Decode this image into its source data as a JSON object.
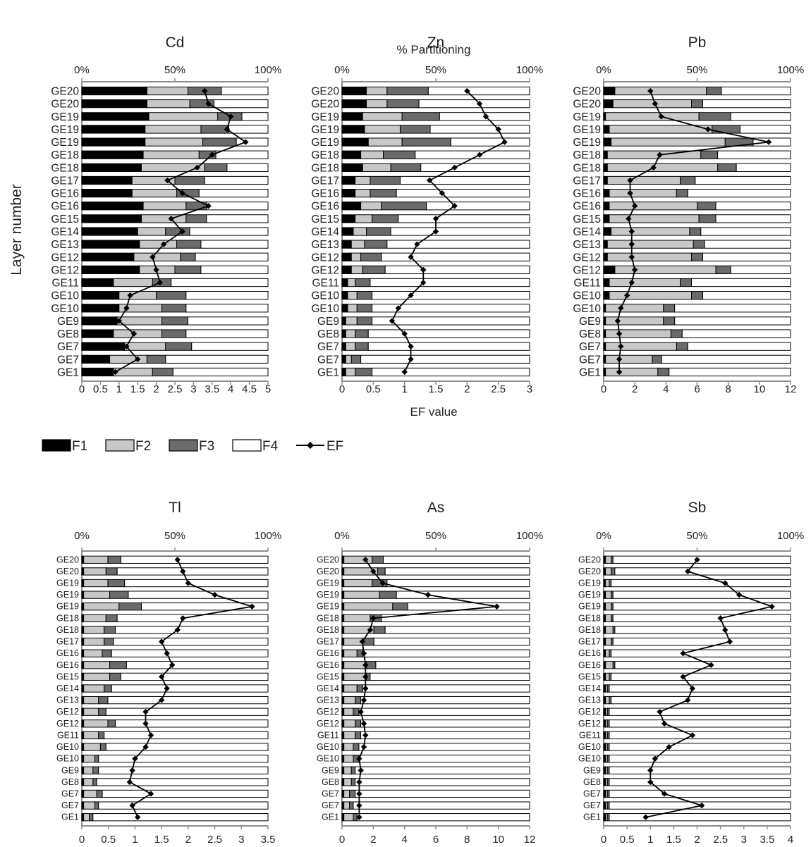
{
  "colors": {
    "F1": "#000000",
    "F2": "#c8c8c8",
    "F3": "#6b6b6b",
    "F4": "#ffffff",
    "EF": "#000000",
    "axis": "#8c8c8c"
  },
  "shared_labels": {
    "top_axis_label": "% Partitioning",
    "y_axis_label": "Layer number",
    "x_axis_label": "EF value"
  },
  "legend": {
    "items": [
      {
        "key": "F1",
        "label": "F1",
        "kind": "bar"
      },
      {
        "key": "F2",
        "label": "F2",
        "kind": "bar"
      },
      {
        "key": "F3",
        "label": "F3",
        "kind": "bar"
      },
      {
        "key": "F4",
        "label": "F4",
        "kind": "bar"
      },
      {
        "key": "EF",
        "label": "EF",
        "kind": "line"
      }
    ]
  },
  "chart_data": [
    {
      "type": "bar",
      "stacked": "horizontal-100-percent",
      "title": "Cd",
      "categories": [
        "GE20",
        "GE20",
        "GE19",
        "GE19",
        "GE19",
        "GE18",
        "GE18",
        "GE17",
        "GE16",
        "GE16",
        "GE15",
        "GE14",
        "GE13",
        "GE12",
        "GE12",
        "GE11",
        "GE10",
        "GE10",
        "GE9",
        "GE8",
        "GE7",
        "GE7",
        "GE1"
      ],
      "percent_ticks": [
        "0%",
        "50%",
        "100%"
      ],
      "series": [
        {
          "name": "F1",
          "values": [
            35,
            35,
            36,
            34,
            34,
            33,
            32,
            27,
            27,
            33,
            32,
            30,
            31,
            28,
            31,
            17,
            20,
            20,
            19,
            17,
            23,
            15,
            17
          ]
        },
        {
          "name": "F2",
          "values": [
            22,
            23,
            37,
            30,
            31,
            30,
            34,
            23,
            24,
            23,
            24,
            15,
            20,
            25,
            19,
            21,
            20,
            23,
            24,
            26,
            22,
            20,
            21
          ]
        },
        {
          "name": "F3",
          "values": [
            18,
            13,
            13,
            15,
            18,
            9,
            12,
            16,
            12,
            11,
            11,
            13,
            13,
            8,
            14,
            10,
            16,
            13,
            14,
            13,
            14,
            10,
            11
          ]
        },
        {
          "name": "F4",
          "values": [
            25,
            29,
            14,
            21,
            17,
            28,
            22,
            34,
            37,
            33,
            33,
            42,
            36,
            39,
            36,
            52,
            44,
            44,
            43,
            44,
            41,
            55,
            51
          ]
        }
      ],
      "ef": {
        "name": "EF",
        "values": [
          3.3,
          3.4,
          4.0,
          3.9,
          4.4,
          3.5,
          3.1,
          2.3,
          2.7,
          3.4,
          2.4,
          2.7,
          2.2,
          1.9,
          2.0,
          2.1,
          1.3,
          1.2,
          1.0,
          1.4,
          1.2,
          1.5,
          0.9
        ]
      },
      "ef_ticks": [
        "0",
        "0.5",
        "1",
        "1.5",
        "2",
        "2.5",
        "3",
        "3.5",
        "4",
        "4.5",
        "5"
      ],
      "ef_range": [
        0,
        5
      ]
    },
    {
      "type": "bar",
      "stacked": "horizontal-100-percent",
      "title": "Zn",
      "categories": [
        "GE20",
        "GE20",
        "GE19",
        "GE19",
        "GE19",
        "GE18",
        "GE18",
        "GE17",
        "GE16",
        "GE16",
        "GE15",
        "GE14",
        "GE13",
        "GE12",
        "GE12",
        "GE11",
        "GE10",
        "GE10",
        "GE9",
        "GE8",
        "GE7",
        "GE7",
        "GE1"
      ],
      "percent_ticks": [
        "0%",
        "50%",
        "100%"
      ],
      "series": [
        {
          "name": "F1",
          "values": [
            13,
            13,
            11,
            12,
            14,
            10,
            11,
            7,
            7,
            10,
            7,
            6,
            5,
            5,
            5,
            3,
            3,
            3,
            2,
            2,
            2,
            2,
            2
          ]
        },
        {
          "name": "F2",
          "values": [
            11,
            11,
            21,
            19,
            18,
            12,
            15,
            8,
            8,
            11,
            9,
            7,
            7,
            5,
            6,
            4,
            5,
            5,
            6,
            5,
            5,
            3,
            5
          ]
        },
        {
          "name": "F3",
          "values": [
            22,
            17,
            20,
            16,
            26,
            17,
            16,
            16,
            14,
            24,
            14,
            13,
            12,
            11,
            12,
            8,
            8,
            8,
            8,
            7,
            7,
            5,
            9
          ]
        },
        {
          "name": "F4",
          "values": [
            54,
            59,
            48,
            53,
            42,
            61,
            58,
            69,
            71,
            55,
            70,
            74,
            76,
            79,
            77,
            85,
            84,
            84,
            84,
            86,
            86,
            90,
            84
          ]
        }
      ],
      "ef": {
        "name": "EF",
        "values": [
          2.0,
          2.2,
          2.3,
          2.5,
          2.6,
          2.2,
          1.8,
          1.4,
          1.6,
          1.8,
          1.5,
          1.5,
          1.2,
          1.1,
          1.3,
          1.3,
          1.1,
          0.9,
          0.8,
          1.0,
          1.1,
          1.1,
          1.0
        ]
      },
      "ef_ticks": [
        "0",
        "0.5",
        "1",
        "1.5",
        "2",
        "2.5",
        "3"
      ],
      "ef_range": [
        0,
        3
      ]
    },
    {
      "type": "bar",
      "stacked": "horizontal-100-percent",
      "title": "Pb",
      "categories": [
        "GE20",
        "GE20",
        "GE19",
        "GE19",
        "GE19",
        "GE18",
        "GE18",
        "GE17",
        "GE16",
        "GE16",
        "GE15",
        "GE14",
        "GE13",
        "GE12",
        "GE12",
        "GE11",
        "GE10",
        "GE10",
        "GE9",
        "GE8",
        "GE7",
        "GE7",
        "GE1"
      ],
      "percent_ticks": [
        "0%",
        "50%",
        "100%"
      ],
      "series": [
        {
          "name": "F1",
          "values": [
            6,
            5,
            1,
            3,
            4,
            2,
            2,
            2,
            3,
            3,
            3,
            4,
            2,
            2,
            6,
            3,
            3,
            1,
            1,
            1,
            1,
            1,
            1
          ]
        },
        {
          "name": "F2",
          "values": [
            49,
            42,
            50,
            55,
            61,
            50,
            59,
            39,
            36,
            47,
            48,
            42,
            46,
            45,
            54,
            38,
            44,
            31,
            31,
            35,
            38,
            25,
            28
          ]
        },
        {
          "name": "F3",
          "values": [
            8,
            6,
            17,
            15,
            15,
            9,
            10,
            8,
            6,
            10,
            9,
            6,
            6,
            6,
            8,
            6,
            6,
            6,
            6,
            6,
            6,
            5,
            6
          ]
        },
        {
          "name": "F4",
          "values": [
            37,
            47,
            32,
            27,
            20,
            39,
            29,
            51,
            55,
            40,
            40,
            48,
            46,
            47,
            32,
            53,
            47,
            62,
            62,
            58,
            55,
            69,
            65
          ]
        }
      ],
      "ef": {
        "name": "EF",
        "values": [
          3.0,
          3.3,
          3.7,
          6.7,
          10.6,
          3.6,
          3.2,
          1.7,
          1.7,
          2.0,
          1.6,
          1.8,
          1.8,
          1.8,
          2.0,
          1.8,
          1.5,
          1.1,
          0.9,
          1.0,
          1.1,
          1.0,
          1.0
        ]
      },
      "ef_ticks": [
        "0",
        "2",
        "4",
        "6",
        "8",
        "10",
        "12"
      ],
      "ef_range": [
        0,
        12
      ]
    },
    {
      "type": "bar",
      "stacked": "horizontal-100-percent",
      "title": "Tl",
      "categories": [
        "GE20",
        "GE20",
        "GE19",
        "GE19",
        "GE19",
        "GE18",
        "GE18",
        "GE17",
        "GE16",
        "GE16",
        "GE15",
        "GE14",
        "GE13",
        "GE12",
        "GE12",
        "GE11",
        "GE10",
        "GE10",
        "GE9",
        "GE8",
        "GE7",
        "GE7",
        "GE1"
      ],
      "percent_ticks": [
        "0%",
        "50%",
        "100%"
      ],
      "series": [
        {
          "name": "F1",
          "values": [
            1,
            1,
            1,
            1,
            1,
            1,
            1,
            1,
            1,
            1,
            1,
            1,
            1,
            1,
            1,
            1,
            1,
            1,
            1,
            1,
            1,
            1,
            1
          ]
        },
        {
          "name": "F2",
          "values": [
            13,
            12,
            13,
            14,
            19,
            12,
            11,
            11,
            10,
            14,
            14,
            11,
            8,
            8,
            13,
            8,
            9,
            6,
            5,
            5,
            7,
            6,
            3
          ]
        },
        {
          "name": "F3",
          "values": [
            7,
            6,
            9,
            10,
            12,
            6,
            6,
            5,
            5,
            9,
            6,
            4,
            5,
            4,
            4,
            3,
            3,
            2,
            3,
            2,
            3,
            2,
            2
          ]
        },
        {
          "name": "F4",
          "values": [
            79,
            81,
            77,
            75,
            68,
            81,
            82,
            83,
            84,
            76,
            79,
            84,
            86,
            87,
            82,
            88,
            87,
            91,
            91,
            92,
            89,
            91,
            94
          ]
        }
      ],
      "ef": {
        "name": "EF",
        "values": [
          1.8,
          1.9,
          2.0,
          2.5,
          3.2,
          1.9,
          1.8,
          1.5,
          1.6,
          1.7,
          1.5,
          1.6,
          1.5,
          1.2,
          1.2,
          1.3,
          1.2,
          1.0,
          0.95,
          0.9,
          1.3,
          0.95,
          1.05
        ]
      },
      "ef_ticks": [
        "0",
        "0.5",
        "1",
        "1.5",
        "2",
        "2.5",
        "3",
        "3.5"
      ],
      "ef_range": [
        0,
        3.5
      ]
    },
    {
      "type": "bar",
      "stacked": "horizontal-100-percent",
      "title": "As",
      "categories": [
        "GE20",
        "GE20",
        "GE19",
        "GE19",
        "GE19",
        "GE18",
        "GE18",
        "GE17",
        "GE16",
        "GE16",
        "GE15",
        "GE14",
        "GE13",
        "GE12",
        "GE12",
        "GE11",
        "GE10",
        "GE10",
        "GE9",
        "GE8",
        "GE7",
        "GE7",
        "GE1"
      ],
      "percent_ticks": [
        "0%",
        "50%",
        "100%"
      ],
      "series": [
        {
          "name": "F1",
          "values": [
            1,
            1,
            1,
            1,
            1,
            1,
            1,
            1,
            1,
            1,
            1,
            1,
            1,
            1,
            1,
            1,
            1,
            1,
            1,
            1,
            1,
            1,
            1
          ]
        },
        {
          "name": "F2",
          "values": [
            15,
            18,
            15,
            19,
            26,
            14,
            16,
            10,
            7,
            12,
            12,
            7,
            6,
            5,
            6,
            6,
            5,
            5,
            4,
            4,
            3,
            3,
            5
          ]
        },
        {
          "name": "F3",
          "values": [
            6,
            4,
            8,
            9,
            8,
            6,
            6,
            6,
            3,
            5,
            2,
            3,
            3,
            3,
            3,
            3,
            3,
            3,
            2,
            2,
            3,
            2,
            2
          ]
        },
        {
          "name": "F4",
          "values": [
            78,
            77,
            76,
            71,
            65,
            79,
            77,
            83,
            89,
            82,
            85,
            89,
            90,
            91,
            90,
            90,
            91,
            91,
            93,
            93,
            93,
            94,
            92
          ]
        }
      ],
      "ef": {
        "name": "EF",
        "values": [
          1.5,
          2.0,
          2.6,
          5.5,
          9.9,
          2.0,
          1.8,
          1.3,
          1.4,
          1.5,
          1.5,
          1.5,
          1.4,
          1.2,
          1.4,
          1.5,
          1.4,
          1.1,
          1.2,
          1.1,
          1.1,
          1.1,
          1.1
        ]
      },
      "ef_ticks": [
        "0",
        "2",
        "4",
        "6",
        "8",
        "10",
        "12"
      ],
      "ef_range": [
        0,
        12
      ]
    },
    {
      "type": "bar",
      "stacked": "horizontal-100-percent",
      "title": "Sb",
      "categories": [
        "GE20",
        "GE20",
        "GE19",
        "GE19",
        "GE19",
        "GE18",
        "GE18",
        "GE17",
        "GE16",
        "GE16",
        "GE15",
        "GE14",
        "GE13",
        "GE12",
        "GE12",
        "GE11",
        "GE10",
        "GE10",
        "GE9",
        "GE8",
        "GE7",
        "GE7",
        "GE1"
      ],
      "percent_ticks": [
        "0%",
        "50%",
        "100%"
      ],
      "series": [
        {
          "name": "F1",
          "values": [
            1,
            1,
            1,
            1,
            1,
            1,
            1,
            1,
            1,
            1,
            1,
            1,
            1,
            1,
            1,
            1,
            1,
            1,
            1,
            1,
            1,
            1,
            1
          ]
        },
        {
          "name": "F2",
          "values": [
            3,
            3,
            2,
            3,
            3,
            3,
            4,
            3,
            2,
            4,
            2,
            1,
            2,
            1,
            1,
            1,
            1,
            1,
            1,
            1,
            1,
            1,
            1
          ]
        },
        {
          "name": "F3",
          "values": [
            1,
            2,
            1,
            1,
            1,
            1,
            1,
            1,
            1,
            1,
            1,
            1,
            1,
            1,
            1,
            1,
            1,
            1,
            1,
            1,
            1,
            1,
            1
          ]
        },
        {
          "name": "F4",
          "values": [
            95,
            94,
            96,
            95,
            95,
            95,
            94,
            95,
            96,
            94,
            96,
            97,
            96,
            97,
            97,
            97,
            97,
            97,
            97,
            97,
            97,
            97,
            97
          ]
        }
      ],
      "ef": {
        "name": "EF",
        "values": [
          2.0,
          1.8,
          2.6,
          2.9,
          3.6,
          2.5,
          2.6,
          2.7,
          1.7,
          2.3,
          1.7,
          1.9,
          1.8,
          1.2,
          1.3,
          1.9,
          1.4,
          1.1,
          1.0,
          1.0,
          1.3,
          2.1,
          0.9
        ]
      },
      "ef_ticks": [
        "0",
        "0.5",
        "1",
        "1.5",
        "2",
        "2.5",
        "3",
        "3.5",
        "4"
      ],
      "ef_range": [
        0,
        4
      ]
    }
  ]
}
